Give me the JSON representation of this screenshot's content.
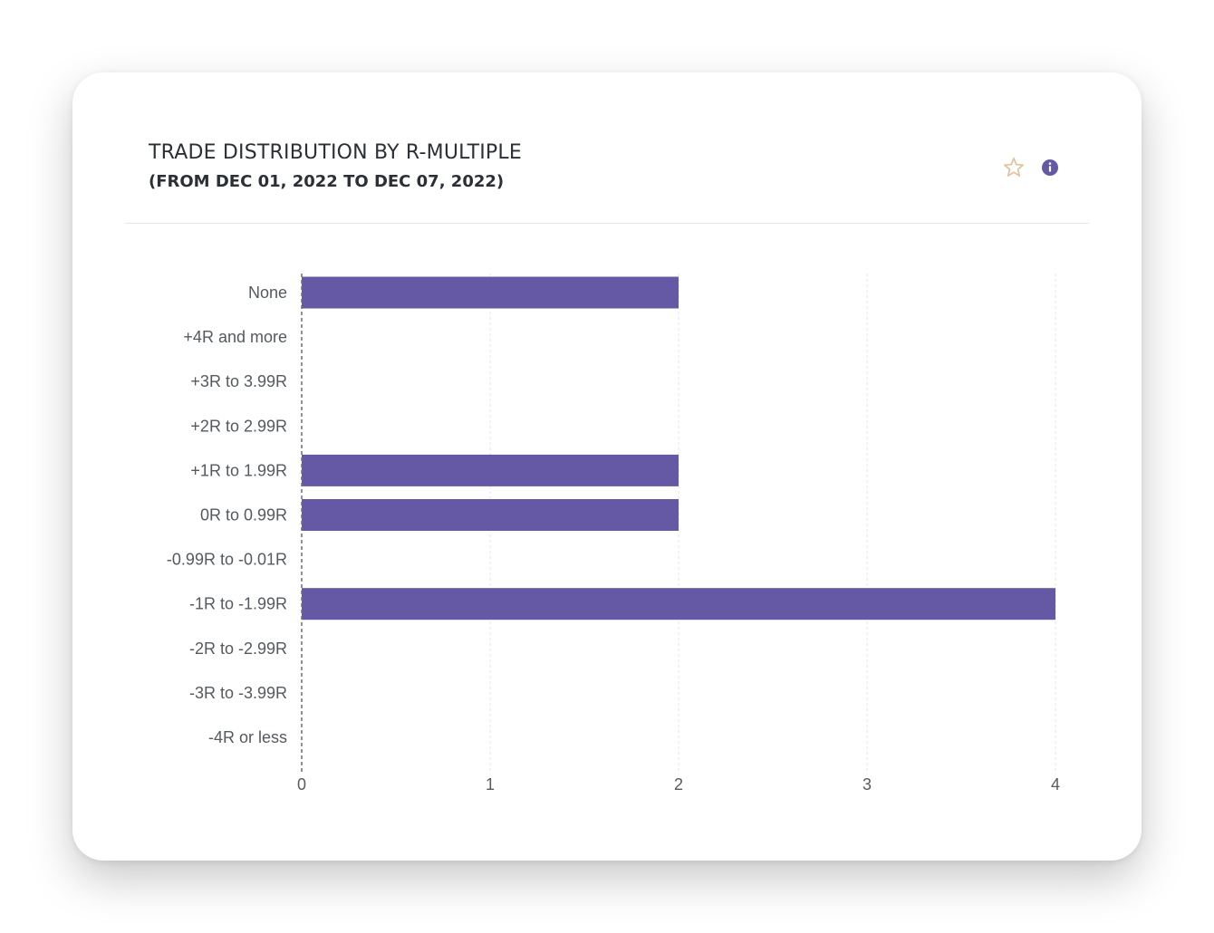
{
  "header": {
    "title": "TRADE DISTRIBUTION BY R-MULTIPLE",
    "subtitle": "(FROM DEC 01, 2022 TO DEC 07, 2022)"
  },
  "icons": {
    "favorite": "star-outline-icon",
    "info": "info-icon"
  },
  "colors": {
    "bar": "#6558a5",
    "star": "#e2c39e",
    "info": "#6558a5"
  },
  "chart_data": {
    "type": "bar",
    "orientation": "horizontal",
    "categories": [
      "None",
      "+4R and more",
      "+3R to 3.99R",
      "+2R to 2.99R",
      "+1R to 1.99R",
      "0R to 0.99R",
      "-0.99R to -0.01R",
      "-1R to -1.99R",
      "-2R to -2.99R",
      "-3R to -3.99R",
      "-4R or less"
    ],
    "values": [
      2,
      0,
      0,
      0,
      2,
      2,
      0,
      4,
      0,
      0,
      0
    ],
    "xlim": [
      0,
      4
    ],
    "xticks": [
      "0",
      "1",
      "2",
      "3",
      "4"
    ],
    "grid": true,
    "legend": false
  }
}
